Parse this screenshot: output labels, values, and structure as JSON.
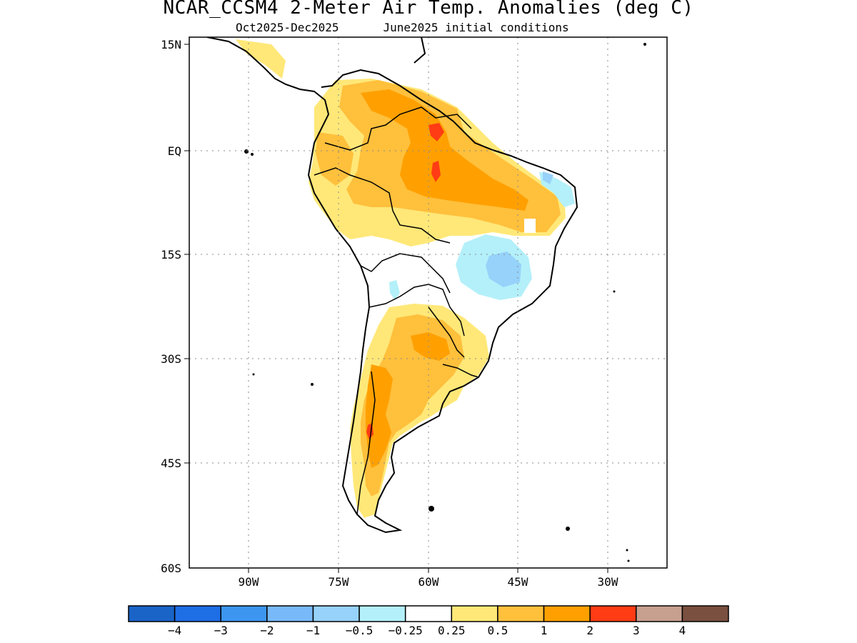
{
  "title": "NCAR_CCSM4 2-Meter Air Temp. Anomalies (deg C)",
  "subtitle_left": "Oct2025-Dec2025",
  "subtitle_right": "June2025 initial conditions",
  "map": {
    "lon_range": [
      -100,
      -27
    ],
    "lat_range": [
      -60,
      15
    ],
    "lat_ticks": [
      "15N",
      "EQ",
      "15S",
      "30S",
      "45S",
      "60S"
    ],
    "lon_ticks": [
      "90W",
      "75W",
      "60W",
      "45W",
      "30W"
    ],
    "grid": "dotted"
  },
  "colorbar": {
    "labels": [
      "−4",
      "−3",
      "−2",
      "−1",
      "−0.5",
      "−0.25",
      "0.25",
      "0.5",
      "1",
      "2",
      "3",
      "4"
    ],
    "colors": [
      "#1a64c8",
      "#1e6ee6",
      "#3c96f0",
      "#78b9fa",
      "#96d2fa",
      "#b4f0fa",
      "#ffffff",
      "#ffe878",
      "#ffc03c",
      "#ffa000",
      "#ff3c14",
      "#c8a090",
      "#7a5040"
    ]
  }
}
